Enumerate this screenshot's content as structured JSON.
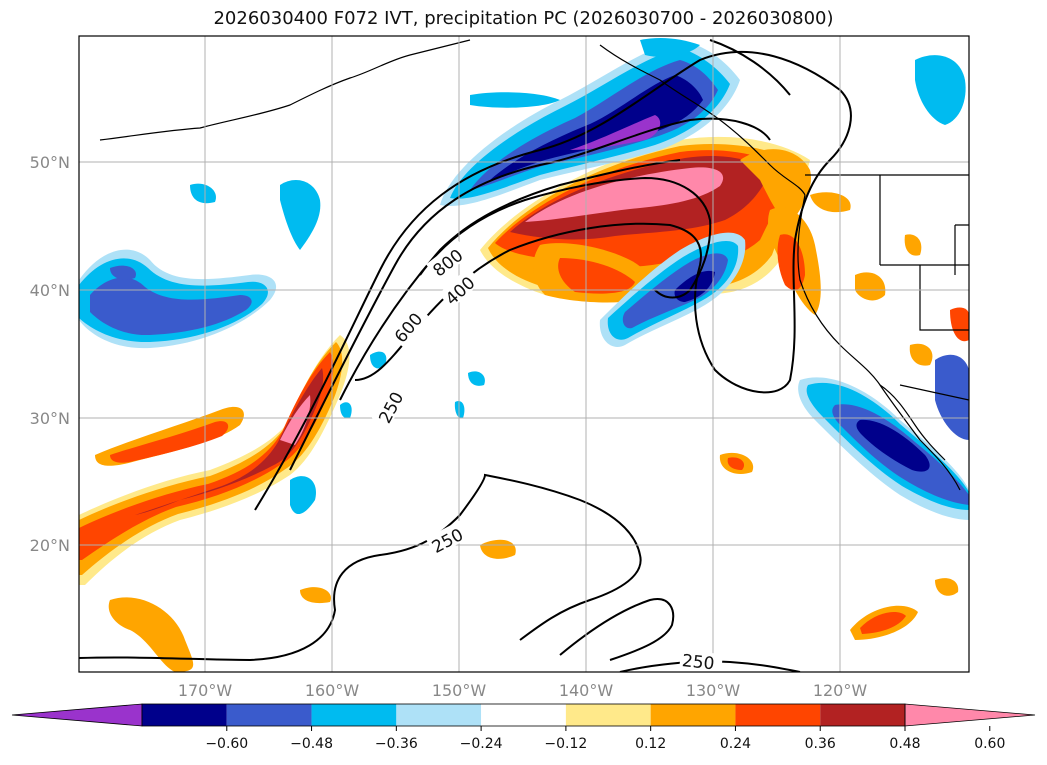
{
  "title": "2026030400 F072 IVT, precipitation PC (2026030700 - 2026030800)",
  "lat_labels": [
    "50°N",
    "40°N",
    "30°N",
    "20°N"
  ],
  "lon_labels": [
    "170°W",
    "160°W",
    "150°W",
    "140°W",
    "130°W",
    "120°W"
  ],
  "colorbar": {
    "ticks": [
      "−0.60",
      "−0.48",
      "−0.36",
      "−0.24",
      "−0.12",
      "0.12",
      "0.24",
      "0.36",
      "0.48",
      "0.60"
    ],
    "colors": [
      "#9a33cc",
      "#00008b",
      "#3a5bcc",
      "#00bbf0",
      "#aee1f7",
      "#ffffff",
      "#ffe98a",
      "#ffa500",
      "#ff4500",
      "#b22222",
      "#ff88aa"
    ]
  },
  "contour_labels": {
    "c800": "800",
    "c600": "600",
    "c400": "400",
    "c250a": "250",
    "c250b": "250",
    "c250c": "250"
  },
  "palette": {
    "purple": "#9a33cc",
    "navy": "#00008b",
    "blue": "#3a5bcc",
    "cyan": "#00bbf0",
    "lightblue": "#aee1f7",
    "yellow": "#ffe98a",
    "orange": "#ffa500",
    "redorange": "#ff4500",
    "darkred": "#b22222",
    "pink": "#ff88aa"
  }
}
